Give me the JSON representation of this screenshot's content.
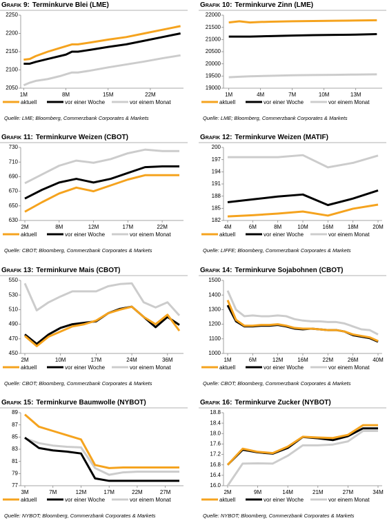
{
  "chart_data": [
    {
      "type": "line",
      "label": "Grafik 9:",
      "title": "Terminkurve Blei (LME)",
      "source": "Quelle: LME; Bloomberg, Commerzbank Corporates & Markets",
      "x": [
        1,
        2,
        3,
        5,
        7,
        8,
        9,
        10,
        12,
        15,
        18,
        21,
        24,
        27
      ],
      "xlim": [
        0.5,
        27.5
      ],
      "xticks": [
        {
          "value": 1,
          "label": "1M"
        },
        {
          "value": 8,
          "label": "8M"
        },
        {
          "value": 15,
          "label": "15M"
        },
        {
          "value": 22,
          "label": "22M"
        }
      ],
      "ylim": [
        2050,
        2250
      ],
      "yticks": [
        2050,
        2100,
        2150,
        2200,
        2250
      ],
      "series": [
        {
          "name": "aktuell",
          "color": "#f5a31e",
          "values": [
            2128,
            2130,
            2138,
            2150,
            2160,
            2165,
            2170,
            2170,
            2175,
            2183,
            2190,
            2200,
            2210,
            2220
          ]
        },
        {
          "name": "vor einer Woche",
          "color": "#000000",
          "values": [
            2117,
            2117,
            2122,
            2130,
            2138,
            2142,
            2150,
            2150,
            2155,
            2163,
            2170,
            2180,
            2190,
            2200
          ]
        },
        {
          "name": "vor einem Monat",
          "color": "#cccccc",
          "values": [
            2058,
            2065,
            2070,
            2075,
            2083,
            2088,
            2093,
            2093,
            2098,
            2107,
            2115,
            2123,
            2132,
            2140
          ]
        }
      ]
    },
    {
      "type": "line",
      "label": "Grafik 10:",
      "title": "Terminkurve Zinn (LME)",
      "source": "Quelle: LME; Bloomberg, Commerzbank Corporates & Markets",
      "x": [
        1,
        2,
        3,
        4,
        5,
        7,
        9,
        11,
        13,
        15
      ],
      "xlim": [
        0.5,
        15.5
      ],
      "xticks": [
        {
          "value": 1,
          "label": "1M"
        },
        {
          "value": 4,
          "label": "4M"
        },
        {
          "value": 7,
          "label": "7M"
        },
        {
          "value": 10,
          "label": "10M"
        },
        {
          "value": 13,
          "label": "13M"
        }
      ],
      "ylim": [
        19000,
        22000
      ],
      "yticks": [
        19000,
        19500,
        20000,
        20500,
        21000,
        21500,
        22000
      ],
      "series": [
        {
          "name": "aktuell",
          "color": "#f5a31e",
          "values": [
            21700,
            21750,
            21700,
            21720,
            21730,
            21750,
            21760,
            21770,
            21780,
            21790
          ]
        },
        {
          "name": "vor einer Woche",
          "color": "#000000",
          "values": [
            21120,
            21120,
            21120,
            21130,
            21140,
            21160,
            21180,
            21190,
            21200,
            21220
          ]
        },
        {
          "name": "vor einem Monat",
          "color": "#cccccc",
          "values": [
            19450,
            19470,
            19490,
            19500,
            19510,
            19530,
            19540,
            19550,
            19560,
            19570
          ]
        }
      ]
    },
    {
      "type": "line",
      "label": "Grafik 11:",
      "title": "Terminkurve Weizen (CBOT)",
      "source": "Quelle: CBOT; Bloomberg, Commerzbank Corporates & Markets",
      "categories": [
        "2M",
        null,
        "8M",
        null,
        "12M",
        null,
        "17M",
        null,
        "22M",
        null
      ],
      "ylim": [
        630,
        730
      ],
      "yticks": [
        630,
        650,
        670,
        690,
        710,
        730
      ],
      "series": [
        {
          "name": "aktuell",
          "color": "#f5a31e",
          "values": [
            642,
            655,
            667,
            675,
            670,
            678,
            686,
            692,
            692,
            692
          ]
        },
        {
          "name": "vor einer Woche",
          "color": "#000000",
          "values": [
            660,
            672,
            682,
            687,
            682,
            687,
            695,
            703,
            704,
            704
          ]
        },
        {
          "name": "vor einem Monat",
          "color": "#cccccc",
          "values": [
            681,
            693,
            705,
            712,
            709,
            714,
            722,
            727,
            725,
            725
          ]
        }
      ]
    },
    {
      "type": "line",
      "label": "Grafik 12:",
      "title": "Terminkurve Weizen (MATIF)",
      "source": "Quelle: LIFFE; Bloomberg, Commerzbank Corporates & Markets",
      "categories": [
        "4M",
        "6M",
        "8M",
        "10M",
        "16M",
        "18M",
        "20M"
      ],
      "ylim": [
        182,
        200
      ],
      "yticks": [
        182,
        185,
        188,
        191,
        194,
        197,
        200
      ],
      "series": [
        {
          "name": "aktuell",
          "color": "#f5a31e",
          "values": [
            183,
            183.3,
            183.7,
            184.2,
            183.2,
            184.9,
            185.9
          ]
        },
        {
          "name": "vor einer Woche",
          "color": "#000000",
          "values": [
            186.5,
            187.2,
            187.9,
            188.4,
            185.8,
            187.4,
            189.4
          ]
        },
        {
          "name": "vor einem Monat",
          "color": "#cccccc",
          "values": [
            197.6,
            197.6,
            197.6,
            198.1,
            195.1,
            196.2,
            198
          ]
        }
      ]
    },
    {
      "type": "line",
      "label": "Grafik 13:",
      "title": "Terminkurve Mais (CBOT)",
      "source": "Quelle: CBOT; Bloomberg, Commerzbank Corporates & Markets",
      "categories": [
        "2M",
        null,
        null,
        "10M",
        null,
        null,
        "17M",
        null,
        null,
        "24M",
        null,
        null,
        "36M",
        null
      ],
      "ylim": [
        450,
        550
      ],
      "yticks": [
        450,
        470,
        490,
        510,
        530,
        550
      ],
      "series": [
        {
          "name": "aktuell",
          "color": "#f5a31e",
          "values": [
            474,
            460,
            473,
            480,
            487,
            490,
            495,
            505,
            510,
            514,
            500,
            490,
            503,
            481
          ]
        },
        {
          "name": "vor einer Woche",
          "color": "#000000",
          "values": [
            476,
            463,
            476,
            485,
            490,
            492,
            494,
            505,
            511,
            514,
            500,
            486,
            500,
            489
          ]
        },
        {
          "name": "vor einem Monat",
          "color": "#cccccc",
          "values": [
            546,
            509,
            520,
            528,
            535,
            535,
            535,
            542,
            545,
            546,
            520,
            513,
            520,
            502
          ]
        }
      ]
    },
    {
      "type": "line",
      "label": "Grafik 14:",
      "title": "Terminkurve Sojabohnen (CBOT)",
      "source": "Quelle: CBOT; Bloomberg, Commerzbank Corporates & Markets",
      "categories": [
        "1M",
        null,
        null,
        "6M",
        null,
        null,
        "12M",
        null,
        null,
        "16M",
        null,
        null,
        "22M",
        null,
        null,
        "26M",
        null,
        null,
        "40M"
      ],
      "ylim": [
        1000,
        1500
      ],
      "yticks": [
        1000,
        1100,
        1200,
        1300,
        1400,
        1500
      ],
      "series": [
        {
          "name": "aktuell",
          "color": "#f5a31e",
          "values": [
            1365,
            1230,
            1190,
            1190,
            1195,
            1195,
            1200,
            1190,
            1175,
            1170,
            1170,
            1165,
            1160,
            1160,
            1150,
            1130,
            1120,
            1110,
            1085
          ]
        },
        {
          "name": "vor einer Woche",
          "color": "#000000",
          "values": [
            1330,
            1220,
            1185,
            1185,
            1190,
            1190,
            1195,
            1185,
            1170,
            1165,
            1170,
            1165,
            1160,
            1160,
            1150,
            1125,
            1115,
            1105,
            1080
          ]
        },
        {
          "name": "vor einem Monat",
          "color": "#cccccc",
          "values": [
            1430,
            1300,
            1255,
            1260,
            1255,
            1255,
            1260,
            1255,
            1235,
            1225,
            1220,
            1220,
            1215,
            1215,
            1205,
            1185,
            1165,
            1160,
            1130
          ]
        }
      ]
    },
    {
      "type": "line",
      "label": "Grafik 15:",
      "title": "Terminkurve Baumwolle (NYBOT)",
      "source": "Quelle: NYBOT; Bloomberg, Commerzbank Corporates & Markets",
      "categories": [
        "3M",
        null,
        "7M",
        null,
        "12M",
        null,
        "17M",
        null,
        "22M",
        null,
        "27M",
        null
      ],
      "ylim": [
        77,
        89
      ],
      "yticks": [
        77,
        79,
        81,
        83,
        85,
        87,
        89
      ],
      "series": [
        {
          "name": "aktuell",
          "color": "#f5a31e",
          "values": [
            88.7,
            86.7,
            86,
            85.3,
            84.6,
            80.4,
            79.9,
            80,
            80,
            80,
            80,
            80
          ]
        },
        {
          "name": "vor einer Woche",
          "color": "#000000",
          "values": [
            84.9,
            83.2,
            82.8,
            82.6,
            82.3,
            78.2,
            77.8,
            77.8,
            77.8,
            77.8,
            77.8,
            77.8
          ]
        },
        {
          "name": "vor einem Monat",
          "color": "#cccccc",
          "values": [
            84.8,
            84,
            83.6,
            83.4,
            83.3,
            79.9,
            78.8,
            79.2,
            79.3,
            79.3,
            79.3,
            79.3
          ]
        }
      ]
    },
    {
      "type": "line",
      "label": "Grafik 16:",
      "title": "Terminkurve Zucker (NYBOT)",
      "source": "Quelle: NYBOT; Bloomberg, Commerzbank Corporates & Markets",
      "categories": [
        "2M",
        null,
        "9M",
        null,
        "14M",
        null,
        "21M",
        null,
        "27M",
        null,
        "34M"
      ],
      "ylim": [
        16,
        18.8
      ],
      "yticks": [
        {
          "value": 16,
          "label": "16.0"
        },
        16.4,
        16.8,
        17.2,
        17.6,
        {
          "value": 18,
          "label": "18.0"
        },
        18.4,
        18.8
      ],
      "series": [
        {
          "name": "aktuell",
          "color": "#f5a31e",
          "values": [
            16.8,
            17.42,
            17.3,
            17.25,
            17.5,
            17.88,
            17.85,
            17.83,
            17.95,
            18.32,
            18.32
          ]
        },
        {
          "name": "vor einer Woche",
          "color": "#000000",
          "values": [
            16.8,
            17.38,
            17.28,
            17.23,
            17.45,
            17.87,
            17.82,
            17.75,
            17.9,
            18.2,
            18.2
          ]
        },
        {
          "name": "vor einem Monat",
          "color": "#cccccc",
          "values": [
            16,
            16.85,
            16.86,
            16.85,
            17.15,
            17.55,
            17.55,
            17.58,
            17.7,
            18.1,
            18.1
          ]
        }
      ]
    }
  ]
}
